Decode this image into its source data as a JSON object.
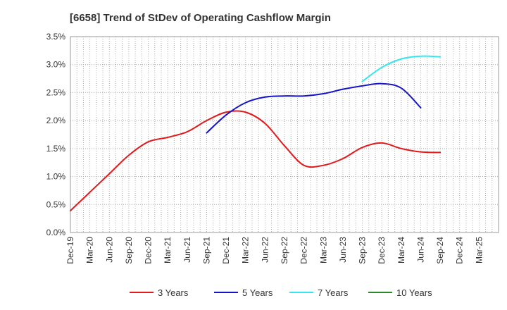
{
  "chart_data": {
    "type": "line",
    "title": "[6658]  Trend of StDev of Operating Cashflow Margin",
    "xlabel": "",
    "ylabel": "",
    "ylim": [
      0,
      3.5
    ],
    "y_ticks": [
      "0.0%",
      "0.5%",
      "1.0%",
      "1.5%",
      "2.0%",
      "2.5%",
      "3.0%",
      "3.5%"
    ],
    "x_ticks": [
      "Dec-19",
      "Mar-20",
      "Jun-20",
      "Sep-20",
      "Dec-20",
      "Mar-21",
      "Jun-21",
      "Sep-21",
      "Dec-21",
      "Mar-22",
      "Jun-22",
      "Sep-22",
      "Dec-22",
      "Mar-23",
      "Jun-23",
      "Sep-23",
      "Dec-23",
      "Mar-24",
      "Jun-24",
      "Sep-24",
      "Dec-24",
      "Mar-25"
    ],
    "grid": true,
    "legend_position": "bottom",
    "series": [
      {
        "name": "3 Years",
        "color": "#e31a1c",
        "start_index": 0,
        "values": [
          0.39,
          0.72,
          1.05,
          1.38,
          1.62,
          1.7,
          1.8,
          2.0,
          2.15,
          2.15,
          1.95,
          1.55,
          1.2,
          1.2,
          1.32,
          1.52,
          1.6,
          1.5,
          1.44,
          1.43
        ]
      },
      {
        "name": "5 Years",
        "color": "#1414c8",
        "start_index": 7,
        "values": [
          1.78,
          2.1,
          2.32,
          2.42,
          2.44,
          2.44,
          2.48,
          2.56,
          2.62,
          2.66,
          2.58,
          2.23
        ]
      },
      {
        "name": "7 Years",
        "color": "#33e6f0",
        "start_index": 15,
        "values": [
          2.7,
          2.95,
          3.1,
          3.15,
          3.14
        ]
      },
      {
        "name": "10 Years",
        "color": "#2a8a2a",
        "start_index": 0,
        "values": []
      }
    ]
  }
}
